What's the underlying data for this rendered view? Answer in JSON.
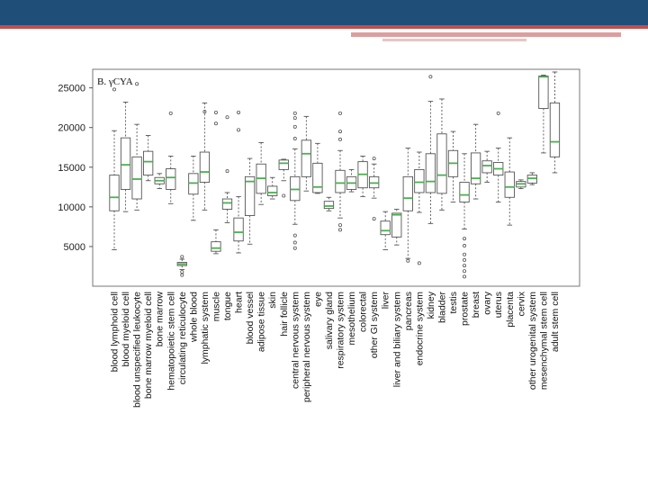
{
  "chart_data": {
    "type": "boxplot",
    "title": "B. γCYA",
    "xlabel": "",
    "ylabel": "",
    "ylim": [
      0,
      27000
    ],
    "yticks": [
      5000,
      10000,
      15000,
      20000,
      25000
    ],
    "box_color": "#555555",
    "median_color": "#4caf50",
    "series": [
      {
        "name": "blood lymphoid cell",
        "min": 4600,
        "q1": 9500,
        "median": 11200,
        "q3": 14000,
        "max": 19600,
        "outliers": [
          24800
        ]
      },
      {
        "name": "blood myeloid cell",
        "min": 9400,
        "q1": 12200,
        "median": 15300,
        "q3": 18700,
        "max": 23200,
        "outliers": []
      },
      {
        "name": "blood unspecified leukocyte",
        "min": 9600,
        "q1": 11000,
        "median": 13500,
        "q3": 16300,
        "max": 20400,
        "outliers": [
          25500
        ]
      },
      {
        "name": "bone marrow myeloid cell",
        "min": 13300,
        "q1": 14000,
        "median": 15700,
        "q3": 17000,
        "max": 19000,
        "outliers": []
      },
      {
        "name": "bone marrow",
        "min": 12300,
        "q1": 12900,
        "median": 13300,
        "q3": 13700,
        "max": 14200,
        "outliers": []
      },
      {
        "name": "hematopoietic stem cell",
        "min": 10400,
        "q1": 12200,
        "median": 13700,
        "q3": 14800,
        "max": 16400,
        "outliers": [
          21800
        ]
      },
      {
        "name": "circulating reticulocyte",
        "min": 2100,
        "q1": 2600,
        "median": 2800,
        "q3": 3000,
        "max": 3400,
        "outliers": [
          1400,
          1800,
          3700
        ]
      },
      {
        "name": "whole blood",
        "min": 8300,
        "q1": 11600,
        "median": 13000,
        "q3": 14200,
        "max": 16400,
        "outliers": []
      },
      {
        "name": "lymphatic system",
        "min": 9600,
        "q1": 13100,
        "median": 14400,
        "q3": 16900,
        "max": 23100,
        "outliers": [
          22000
        ]
      },
      {
        "name": "muscle",
        "min": 4100,
        "q1": 4400,
        "median": 4800,
        "q3": 5600,
        "max": 7100,
        "outliers": [
          21900,
          20500
        ]
      },
      {
        "name": "tongue",
        "min": 8000,
        "q1": 9700,
        "median": 10500,
        "q3": 11000,
        "max": 11800,
        "outliers": [
          14500,
          21300
        ]
      },
      {
        "name": "heart",
        "min": 4200,
        "q1": 5700,
        "median": 6800,
        "q3": 8600,
        "max": 11300,
        "outliers": [
          21900,
          19700
        ]
      },
      {
        "name": "blood vessel",
        "min": 5300,
        "q1": 8900,
        "median": 13200,
        "q3": 13800,
        "max": 16100,
        "outliers": []
      },
      {
        "name": "adipose tissue",
        "min": 10300,
        "q1": 11700,
        "median": 13600,
        "q3": 15400,
        "max": 18100,
        "outliers": []
      },
      {
        "name": "skin",
        "min": 11000,
        "q1": 11400,
        "median": 11800,
        "q3": 12600,
        "max": 13700,
        "outliers": []
      },
      {
        "name": "hair follicle",
        "min": 13300,
        "q1": 14700,
        "median": 15500,
        "q3": 15900,
        "max": 16000,
        "outliers": [
          11400
        ]
      },
      {
        "name": "central nervous system",
        "min": 7800,
        "q1": 10800,
        "median": 12200,
        "q3": 13800,
        "max": 17300,
        "outliers": [
          4800,
          5500,
          6400,
          18600,
          20100,
          21200,
          21800
        ]
      },
      {
        "name": "peripheral nervous system",
        "min": 12000,
        "q1": 13800,
        "median": 16700,
        "q3": 18400,
        "max": 21400,
        "outliers": []
      },
      {
        "name": "eye",
        "min": 11700,
        "q1": 11800,
        "median": 12500,
        "q3": 15500,
        "max": 18000,
        "outliers": []
      },
      {
        "name": "salivary gland",
        "min": 9500,
        "q1": 9800,
        "median": 10100,
        "q3": 10700,
        "max": 11200,
        "outliers": []
      },
      {
        "name": "respiratory system",
        "min": 8600,
        "q1": 11800,
        "median": 13000,
        "q3": 14600,
        "max": 17100,
        "outliers": [
          7100,
          7700,
          18500,
          19500,
          21800
        ]
      },
      {
        "name": "mesothelium",
        "min": 11900,
        "q1": 12200,
        "median": 13000,
        "q3": 13800,
        "max": 14700,
        "outliers": []
      },
      {
        "name": "colorectal",
        "min": 11300,
        "q1": 12400,
        "median": 14100,
        "q3": 15700,
        "max": 16400,
        "outliers": []
      },
      {
        "name": "other GI system",
        "min": 11100,
        "q1": 12400,
        "median": 13000,
        "q3": 13800,
        "max": 15400,
        "outliers": [
          8500,
          16100
        ]
      },
      {
        "name": "liver",
        "min": 4600,
        "q1": 6500,
        "median": 7000,
        "q3": 8200,
        "max": 9400,
        "outliers": []
      },
      {
        "name": "liver and biliary system",
        "min": 5200,
        "q1": 6200,
        "median": 9000,
        "q3": 9200,
        "max": 9700,
        "outliers": []
      },
      {
        "name": "pancreas",
        "min": 3500,
        "q1": 9500,
        "median": 11100,
        "q3": 13800,
        "max": 17400,
        "outliers": [
          3200
        ]
      },
      {
        "name": "endocrine system",
        "min": 9300,
        "q1": 11800,
        "median": 13100,
        "q3": 14700,
        "max": 16900,
        "outliers": [
          2900
        ]
      },
      {
        "name": "kidney",
        "min": 7900,
        "q1": 11800,
        "median": 13200,
        "q3": 16700,
        "max": 23300,
        "outliers": [
          26400
        ]
      },
      {
        "name": "bladder",
        "min": 9600,
        "q1": 11700,
        "median": 14000,
        "q3": 19200,
        "max": 23600,
        "outliers": []
      },
      {
        "name": "testis",
        "min": 10600,
        "q1": 13800,
        "median": 15500,
        "q3": 17100,
        "max": 19500,
        "outliers": []
      },
      {
        "name": "prostate",
        "min": 7200,
        "q1": 10600,
        "median": 11500,
        "q3": 13100,
        "max": 16700,
        "outliers": [
          1200,
          1900,
          2600,
          3300,
          4000,
          5100,
          6000
        ]
      },
      {
        "name": "breast",
        "min": 11000,
        "q1": 12900,
        "median": 13600,
        "q3": 16800,
        "max": 20400,
        "outliers": []
      },
      {
        "name": "ovary",
        "min": 13100,
        "q1": 14300,
        "median": 15200,
        "q3": 15800,
        "max": 17000,
        "outliers": []
      },
      {
        "name": "uterus",
        "min": 10600,
        "q1": 14000,
        "median": 14800,
        "q3": 15600,
        "max": 17400,
        "outliers": [
          21800
        ]
      },
      {
        "name": "placenta",
        "min": 7700,
        "q1": 11200,
        "median": 12500,
        "q3": 14400,
        "max": 18700,
        "outliers": []
      },
      {
        "name": "cervix",
        "min": 12300,
        "q1": 12500,
        "median": 12900,
        "q3": 13200,
        "max": 13400,
        "outliers": []
      },
      {
        "name": "other urogenital system",
        "min": 12800,
        "q1": 13000,
        "median": 13600,
        "q3": 14000,
        "max": 14300,
        "outliers": []
      },
      {
        "name": "mesenchymal stem cell",
        "min": 16800,
        "q1": 22400,
        "median": 26400,
        "q3": 26500,
        "max": 26600,
        "outliers": []
      },
      {
        "name": "adult stem cell",
        "min": 14300,
        "q1": 16300,
        "median": 18200,
        "q3": 23100,
        "max": 27000,
        "outliers": []
      }
    ]
  }
}
